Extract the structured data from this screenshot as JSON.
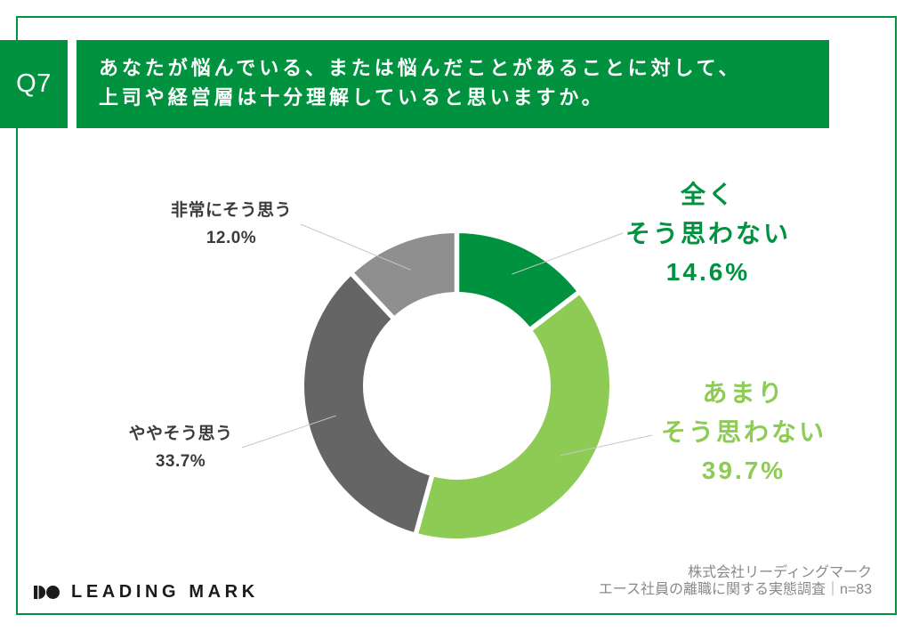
{
  "header": {
    "question_number": "Q7",
    "title_line1": "あなたが悩んでいる、または悩んだことがあることに対して、",
    "title_line2": "上司や経営層は十分理解していると思いますか。"
  },
  "chart_data": {
    "type": "pie",
    "subtype": "donut",
    "categories": [
      "全くそう思わない",
      "あまりそう思わない",
      "ややそう思う",
      "非常にそう思う"
    ],
    "values": [
      14.6,
      39.7,
      33.7,
      12.0
    ],
    "unit": "%",
    "colors": [
      "#00923f",
      "#8ecb55",
      "#656565",
      "#8f8f8f"
    ],
    "start_angle_deg": 0,
    "direction": "clockwise",
    "legend_position": "callout-labels",
    "labels": [
      {
        "lines": [
          "全く",
          "そう思わない"
        ],
        "value_text": "14.6%"
      },
      {
        "lines": [
          "あまり",
          "そう思わない"
        ],
        "value_text": "39.7%"
      },
      {
        "lines": [
          "ややそう思う"
        ],
        "value_text": "33.7%"
      },
      {
        "lines": [
          "非常にそう思う"
        ],
        "value_text": "12.0%"
      }
    ]
  },
  "footer": {
    "logo_text": "LEADING MARK",
    "source_line1": "株式会社リーディングマーク",
    "source_line2": "エース社員の離職に関する実態調査｜n=83"
  },
  "style": {
    "accent_green": "#00923f",
    "light_green": "#8ecb55",
    "dark_gray": "#656565",
    "light_gray": "#8f8f8f"
  }
}
